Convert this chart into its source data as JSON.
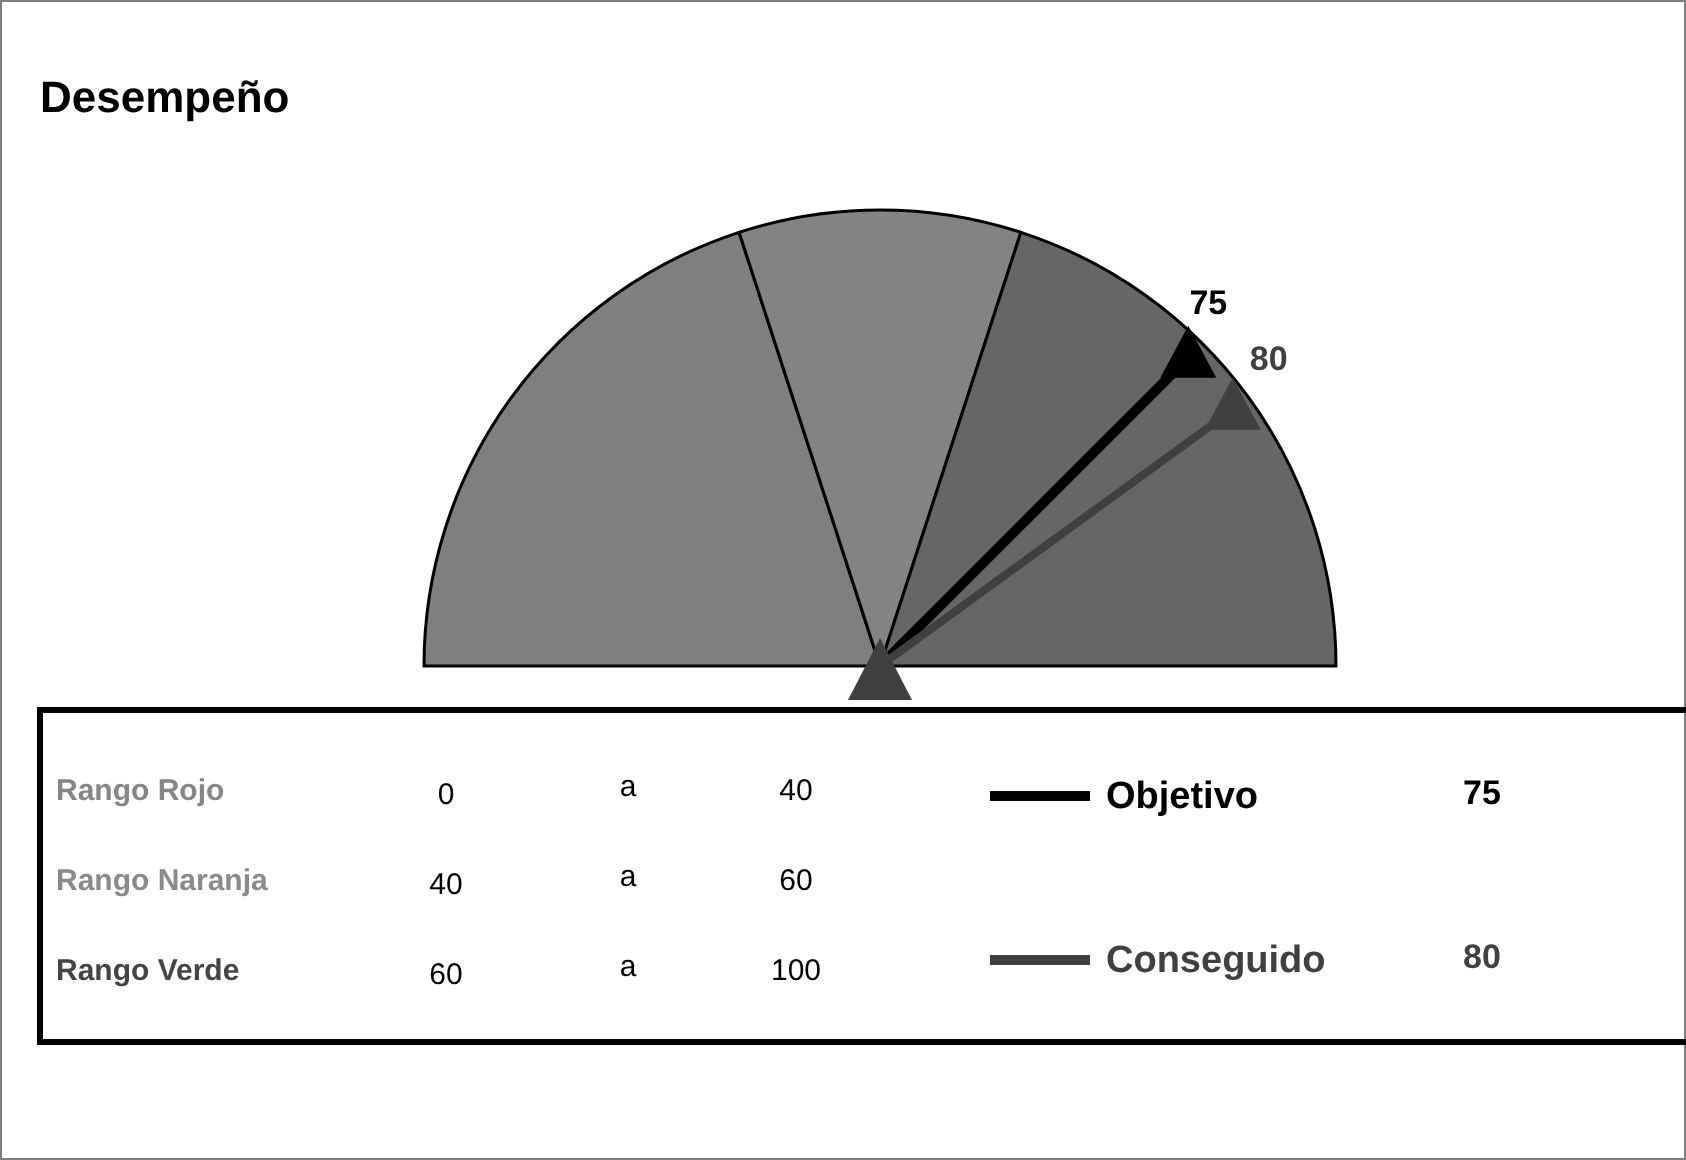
{
  "chart_data": {
    "type": "other",
    "title": "Desempeño",
    "categories": [
      "Objetivo",
      "Conseguido"
    ],
    "values": [
      75,
      80
    ],
    "colors": [
      "#000000",
      "#404040"
    ],
    "data_labels": true,
    "annotations": [
      "Rango Rojo",
      "0",
      "a",
      "40",
      "Rango Naranja",
      "40",
      "a",
      "60",
      "Rango Verde",
      "60",
      "a",
      "100",
      "75",
      "80"
    ]
  }
}
